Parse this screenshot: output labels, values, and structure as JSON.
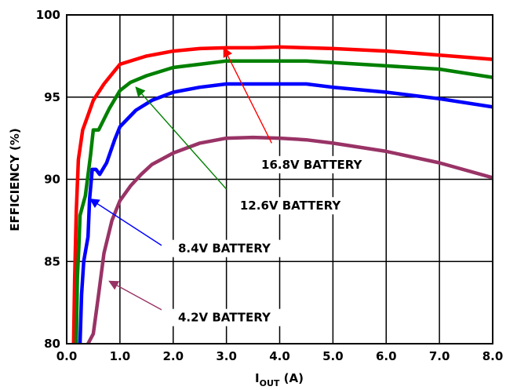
{
  "chart_data": {
    "type": "line",
    "title": "",
    "xlabel": {
      "main": "I",
      "sub": "OUT",
      "rest": " (A)"
    },
    "ylabel": "EFFICIENCY (%)",
    "xlim": [
      0,
      8
    ],
    "ylim": [
      80,
      100
    ],
    "x_ticks": [
      "0.0",
      "1.0",
      "2.0",
      "3.0",
      "4.0",
      "5.0",
      "6.0",
      "7.0",
      "8.0"
    ],
    "y_ticks": [
      "80",
      "85",
      "90",
      "95",
      "100"
    ],
    "grid": true,
    "series": [
      {
        "name": "16.8V BATTERY",
        "color": "#ff0000",
        "points": [
          [
            0.13,
            80
          ],
          [
            0.15,
            84
          ],
          [
            0.18,
            88
          ],
          [
            0.22,
            91.2
          ],
          [
            0.3,
            93
          ],
          [
            0.4,
            93.9
          ],
          [
            0.5,
            94.8
          ],
          [
            0.7,
            95.8
          ],
          [
            0.9,
            96.6
          ],
          [
            1.0,
            97
          ],
          [
            1.5,
            97.5
          ],
          [
            2.0,
            97.8
          ],
          [
            2.5,
            97.95
          ],
          [
            3.0,
            98
          ],
          [
            3.5,
            98
          ],
          [
            4.0,
            98.05
          ],
          [
            4.5,
            98
          ],
          [
            5.0,
            97.95
          ],
          [
            6.0,
            97.8
          ],
          [
            7.0,
            97.55
          ],
          [
            8.0,
            97.3
          ]
        ]
      },
      {
        "name": "12.6V BATTERY",
        "color": "#008000",
        "points": [
          [
            0.18,
            80
          ],
          [
            0.2,
            84
          ],
          [
            0.23,
            86
          ],
          [
            0.25,
            87.8
          ],
          [
            0.35,
            89
          ],
          [
            0.45,
            91.5
          ],
          [
            0.5,
            93
          ],
          [
            0.6,
            93
          ],
          [
            0.8,
            94.3
          ],
          [
            1.0,
            95.4
          ],
          [
            1.2,
            95.9
          ],
          [
            1.5,
            96.3
          ],
          [
            2.0,
            96.8
          ],
          [
            2.5,
            97
          ],
          [
            3.0,
            97.2
          ],
          [
            3.5,
            97.2
          ],
          [
            4.0,
            97.2
          ],
          [
            4.5,
            97.2
          ],
          [
            5.0,
            97.1
          ],
          [
            6.0,
            96.9
          ],
          [
            7.0,
            96.7
          ],
          [
            8.0,
            96.2
          ]
        ]
      },
      {
        "name": "8.4V BATTERY",
        "color": "#0000ff",
        "points": [
          [
            0.25,
            80
          ],
          [
            0.28,
            83
          ],
          [
            0.32,
            85
          ],
          [
            0.4,
            86.5
          ],
          [
            0.43,
            88.8
          ],
          [
            0.48,
            90.6
          ],
          [
            0.55,
            90.6
          ],
          [
            0.62,
            90.3
          ],
          [
            0.75,
            91
          ],
          [
            0.9,
            92.4
          ],
          [
            1.0,
            93.2
          ],
          [
            1.3,
            94.2
          ],
          [
            1.6,
            94.8
          ],
          [
            2.0,
            95.3
          ],
          [
            2.5,
            95.6
          ],
          [
            3.0,
            95.8
          ],
          [
            3.5,
            95.8
          ],
          [
            4.0,
            95.8
          ],
          [
            4.5,
            95.8
          ],
          [
            5.0,
            95.6
          ],
          [
            6.0,
            95.3
          ],
          [
            7.0,
            94.9
          ],
          [
            8.0,
            94.4
          ]
        ]
      },
      {
        "name": "4.2V BATTERY",
        "color": "#993366",
        "points": [
          [
            0.4,
            80
          ],
          [
            0.5,
            80.6
          ],
          [
            0.6,
            83
          ],
          [
            0.7,
            85.5
          ],
          [
            0.85,
            87.5
          ],
          [
            1.0,
            88.7
          ],
          [
            1.2,
            89.6
          ],
          [
            1.4,
            90.3
          ],
          [
            1.6,
            90.9
          ],
          [
            2.0,
            91.6
          ],
          [
            2.5,
            92.2
          ],
          [
            3.0,
            92.5
          ],
          [
            3.5,
            92.55
          ],
          [
            4.0,
            92.5
          ],
          [
            4.5,
            92.4
          ],
          [
            5.0,
            92.2
          ],
          [
            6.0,
            91.7
          ],
          [
            7.0,
            91.0
          ],
          [
            8.0,
            90.1
          ]
        ]
      }
    ],
    "annotations": [
      {
        "text": "16.8V BATTERY",
        "series": 0,
        "label_pos": [
          4.6,
          90.7
        ],
        "arrow_from": [
          3.85,
          92.2
        ],
        "arrow_to": [
          2.95,
          98.0
        ]
      },
      {
        "text": "12.6V BATTERY",
        "series": 1,
        "label_pos": [
          4.2,
          88.2
        ],
        "arrow_from": [
          3.0,
          89.4
        ],
        "arrow_to": [
          1.3,
          95.6
        ]
      },
      {
        "text": "8.4V BATTERY",
        "series": 2,
        "label_pos": [
          2.96,
          85.6
        ],
        "arrow_from": [
          1.82,
          85.9
        ],
        "arrow_to": [
          0.44,
          88.8
        ]
      },
      {
        "text": "4.2V BATTERY",
        "series": 3,
        "label_pos": [
          2.96,
          81.4
        ],
        "arrow_from": [
          1.93,
          81.8
        ],
        "arrow_to": [
          0.8,
          83.8
        ]
      }
    ]
  }
}
